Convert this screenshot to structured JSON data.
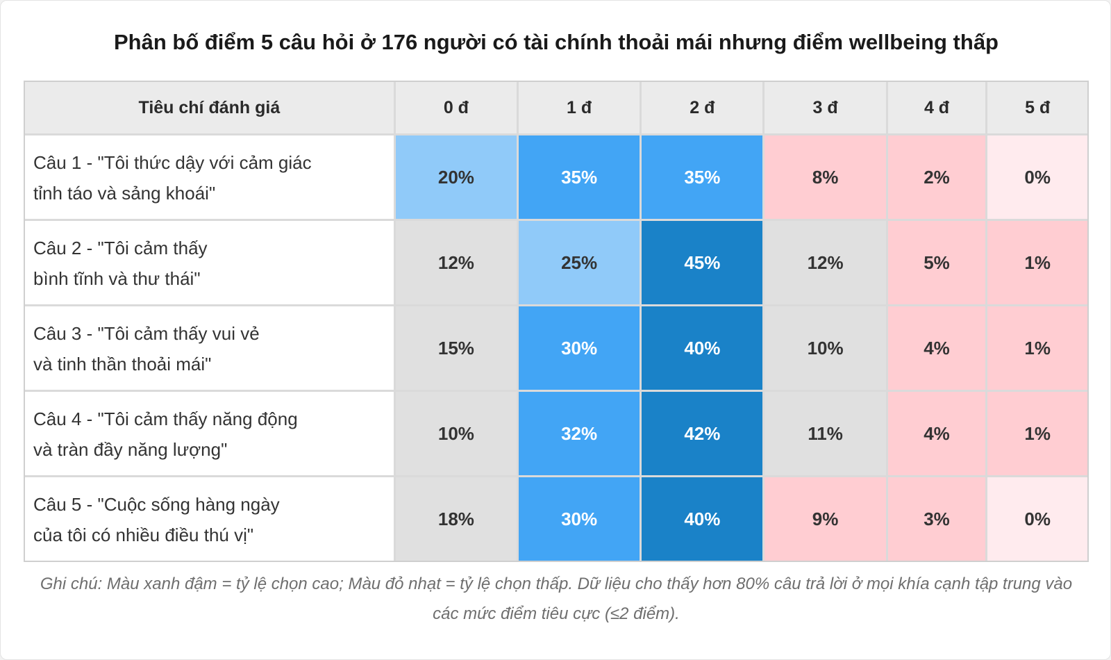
{
  "title": "Phân bố điểm 5 câu hỏi ở 176 người có tài chính thoải mái nhưng điểm wellbeing thấp",
  "colors": {
    "very_high": "#1a82c8",
    "high": "#42a5f5",
    "medium": "#90caf9",
    "neutral": "#e0e0e0",
    "low": "#ffcdd2",
    "very_low": "#ffebee",
    "text_dark": "#333333",
    "text_light": "#ffffff"
  },
  "chart_data": {
    "type": "table",
    "title": "Phân bố điểm 5 câu hỏi ở 176 người có tài chính thoải mái nhưng điểm wellbeing thấp",
    "criterion_header": "Tiêu chí đánh giá",
    "columns": [
      "0 đ",
      "1 đ",
      "2 đ",
      "3 đ",
      "4 đ",
      "5 đ"
    ],
    "rows": [
      {
        "label_lines": [
          "Câu 1 - \"Tôi thức dậy với cảm giác",
          "tỉnh táo và sảng khoái\""
        ],
        "cells": [
          {
            "text": "20%",
            "value": 20,
            "level": "medium"
          },
          {
            "text": "35%",
            "value": 35,
            "level": "high"
          },
          {
            "text": "35%",
            "value": 35,
            "level": "high"
          },
          {
            "text": "8%",
            "value": 8,
            "level": "low"
          },
          {
            "text": "2%",
            "value": 2,
            "level": "low"
          },
          {
            "text": "0%",
            "value": 0,
            "level": "very_low"
          }
        ]
      },
      {
        "label_lines": [
          "Câu 2 - \"Tôi cảm thấy",
          "bình tĩnh và thư thái\""
        ],
        "cells": [
          {
            "text": "12%",
            "value": 12,
            "level": "neutral"
          },
          {
            "text": "25%",
            "value": 25,
            "level": "medium"
          },
          {
            "text": "45%",
            "value": 45,
            "level": "very_high"
          },
          {
            "text": "12%",
            "value": 12,
            "level": "neutral"
          },
          {
            "text": "5%",
            "value": 5,
            "level": "low"
          },
          {
            "text": "1%",
            "value": 1,
            "level": "low"
          }
        ]
      },
      {
        "label_lines": [
          "Câu 3 - \"Tôi cảm thấy vui vẻ",
          "và tinh thần thoải mái\""
        ],
        "cells": [
          {
            "text": "15%",
            "value": 15,
            "level": "neutral"
          },
          {
            "text": "30%",
            "value": 30,
            "level": "high"
          },
          {
            "text": "40%",
            "value": 40,
            "level": "very_high"
          },
          {
            "text": "10%",
            "value": 10,
            "level": "neutral"
          },
          {
            "text": "4%",
            "value": 4,
            "level": "low"
          },
          {
            "text": "1%",
            "value": 1,
            "level": "low"
          }
        ]
      },
      {
        "label_lines": [
          "Câu 4 - \"Tôi cảm thấy năng động",
          "và tràn đầy năng lượng\""
        ],
        "cells": [
          {
            "text": "10%",
            "value": 10,
            "level": "neutral"
          },
          {
            "text": "32%",
            "value": 32,
            "level": "high"
          },
          {
            "text": "42%",
            "value": 42,
            "level": "very_high"
          },
          {
            "text": "11%",
            "value": 11,
            "level": "neutral"
          },
          {
            "text": "4%",
            "value": 4,
            "level": "low"
          },
          {
            "text": "1%",
            "value": 1,
            "level": "low"
          }
        ]
      },
      {
        "label_lines": [
          "Câu 5 - \"Cuộc sống hàng ngày",
          "của tôi có nhiều điều thú vị\""
        ],
        "cells": [
          {
            "text": "18%",
            "value": 18,
            "level": "neutral"
          },
          {
            "text": "30%",
            "value": 30,
            "level": "high"
          },
          {
            "text": "40%",
            "value": 40,
            "level": "very_high"
          },
          {
            "text": "9%",
            "value": 9,
            "level": "low"
          },
          {
            "text": "3%",
            "value": 3,
            "level": "low"
          },
          {
            "text": "0%",
            "value": 0,
            "level": "very_low"
          }
        ]
      }
    ]
  },
  "note": "Ghi chú: Màu xanh đậm = tỷ lệ chọn cao; Màu đỏ nhạt = tỷ lệ chọn thấp. Dữ liệu cho thấy hơn 80% câu trả lời ở mọi khía cạnh tập trung vào các mức điểm tiêu cực (≤2 điểm)."
}
